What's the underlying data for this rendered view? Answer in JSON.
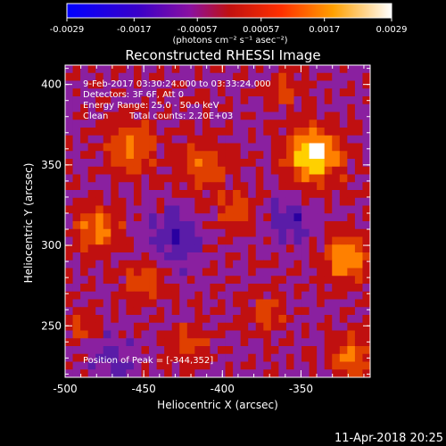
{
  "chart_data": {
    "type": "heatmap",
    "title": "Reconstructed RHESSI Image",
    "xlabel": "Heliocentric X (arcsec)",
    "ylabel": "Heliocentric Y (arcsec)",
    "xlim": [
      -500,
      -306
    ],
    "ylim": [
      218,
      412
    ],
    "x_ticks": [
      "-500",
      "-450",
      "-400",
      "-350"
    ],
    "x_tick_values": [
      -500,
      -450,
      -400,
      -350
    ],
    "y_ticks": [
      "250",
      "300",
      "350",
      "400"
    ],
    "y_tick_values": [
      250,
      300,
      350,
      400
    ],
    "colorbar": {
      "tick_labels": [
        "-0.0029",
        "-0.0017",
        "-0.00057",
        "0.00057",
        "0.0017",
        "0.0029"
      ],
      "tick_values": [
        -0.0029,
        -0.0017,
        -0.00057,
        0.00057,
        0.0017,
        0.0029
      ],
      "range": [
        -0.0029,
        0.0029
      ],
      "units": "(photons cm⁻² s⁻¹ asec⁻²)"
    },
    "annotations": [
      "9-Feb-2017 03:30:24.000 to 03:33:24.000",
      "Detectors: 3F 6F, Att 0",
      "Energy Range: 25.0 - 50.0 keV",
      "Clean",
      "Total counts: 2.20E+03",
      "Position of Peak = [-344,352]"
    ],
    "peak": {
      "x": -344,
      "y": 352
    },
    "blobs": [
      {
        "x": -342,
        "y": 356,
        "r": 16,
        "amp": 0.0029
      },
      {
        "x": -480,
        "y": 310,
        "r": 13,
        "amp": 0.0017
      },
      {
        "x": -458,
        "y": 360,
        "r": 15,
        "amp": 0.0015
      },
      {
        "x": -412,
        "y": 350,
        "r": 14,
        "amp": 0.0014
      },
      {
        "x": -392,
        "y": 322,
        "r": 12,
        "amp": 0.0012
      },
      {
        "x": -322,
        "y": 292,
        "r": 14,
        "amp": 0.0019
      },
      {
        "x": -450,
        "y": 278,
        "r": 12,
        "amp": 0.0012
      },
      {
        "x": -372,
        "y": 258,
        "r": 11,
        "amp": 0.0011
      },
      {
        "x": -318,
        "y": 230,
        "r": 13,
        "amp": 0.0016
      },
      {
        "x": -490,
        "y": 250,
        "r": 10,
        "amp": 0.0009
      },
      {
        "x": -420,
        "y": 240,
        "r": 12,
        "amp": 0.001
      },
      {
        "x": -360,
        "y": 396,
        "r": 10,
        "amp": 0.0009
      },
      {
        "x": -430,
        "y": 305,
        "r": 16,
        "amp": -0.0012
      },
      {
        "x": -356,
        "y": 315,
        "r": 14,
        "amp": -0.0011
      },
      {
        "x": -470,
        "y": 228,
        "r": 14,
        "amp": -0.0009
      }
    ],
    "colors": [
      "#0000c0",
      "#2a00a0",
      "#5a1ca8",
      "#8a20a0",
      "#c01010",
      "#e04000",
      "#ff8000",
      "#ffd000",
      "#ffffff"
    ]
  },
  "footer": {
    "timestamp": "11-Apr-2018 20:25"
  }
}
